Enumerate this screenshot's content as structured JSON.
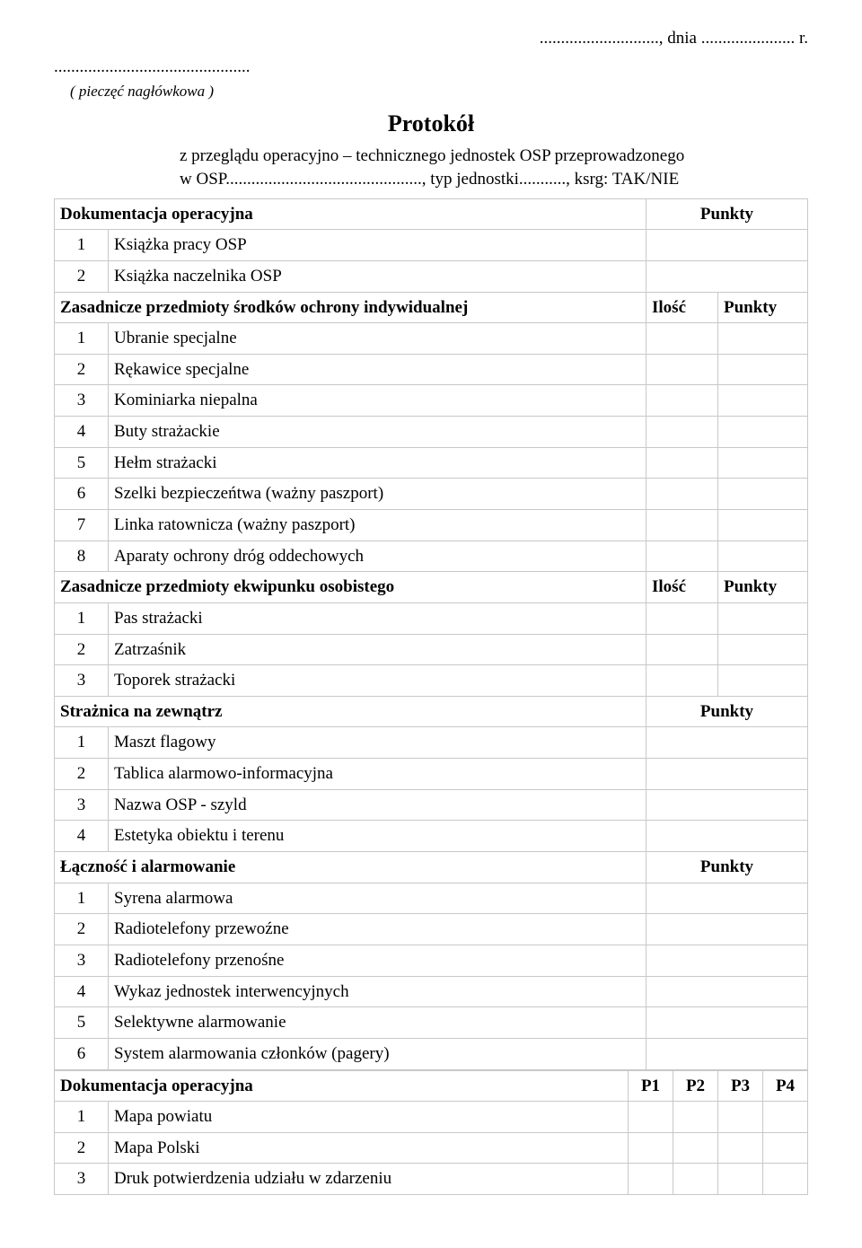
{
  "header": {
    "date_line": "............................, dnia ...................... r.",
    "stamp_dots": "..............................................",
    "stamp_caption": "( pieczęć nagłówkowa )",
    "title": "Protokół",
    "intro_line1": "z przeglądu operacyjno – technicznego jednostek OSP przeprowadzonego",
    "intro_line2": "w OSP.............................................., typ jednostki..........., ksrg: TAK/NIE"
  },
  "sec1": {
    "title": "Dokumentacja operacyjna",
    "pt_label": "Punkty",
    "rows": [
      {
        "n": "1",
        "t": "Książka pracy OSP"
      },
      {
        "n": "2",
        "t": "Książka naczelnika OSP"
      }
    ]
  },
  "sec2": {
    "title": "Zasadnicze przedmioty środków ochrony indywidualnej",
    "il_label": "Ilość",
    "pt_label": "Punkty",
    "rows": [
      {
        "n": "1",
        "t": "Ubranie specjalne"
      },
      {
        "n": "2",
        "t": "Rękawice specjalne"
      },
      {
        "n": "3",
        "t": "Kominiarka niepalna"
      },
      {
        "n": "4",
        "t": "Buty strażackie"
      },
      {
        "n": "5",
        "t": "Hełm strażacki"
      },
      {
        "n": "6",
        "t": "Szelki bezpieczeńtwa (ważny paszport)"
      },
      {
        "n": "7",
        "t": "Linka ratownicza (ważny paszport)"
      },
      {
        "n": "8",
        "t": "Aparaty ochrony dróg oddechowych"
      }
    ]
  },
  "sec3": {
    "title": "Zasadnicze przedmioty ekwipunku osobistego",
    "il_label": "Ilość",
    "pt_label": "Punkty",
    "rows": [
      {
        "n": "1",
        "t": "Pas strażacki"
      },
      {
        "n": "2",
        "t": "Zatrzaśnik"
      },
      {
        "n": "3",
        "t": "Toporek strażacki"
      }
    ]
  },
  "sec4": {
    "title": "Strażnica na zewnątrz",
    "pt_label": "Punkty",
    "rows": [
      {
        "n": "1",
        "t": "Maszt flagowy"
      },
      {
        "n": "2",
        "t": "Tablica alarmowo-informacyjna"
      },
      {
        "n": "3",
        "t": "Nazwa OSP - szyld"
      },
      {
        "n": "4",
        "t": "Estetyka obiektu i terenu"
      }
    ]
  },
  "sec5": {
    "title": "Łączność i alarmowanie",
    "pt_label": "Punkty",
    "rows": [
      {
        "n": "1",
        "t": "Syrena alarmowa"
      },
      {
        "n": "2",
        "t": "Radiotelefony przewoźne"
      },
      {
        "n": "3",
        "t": "Radiotelefony przenośne"
      },
      {
        "n": "4",
        "t": "Wykaz jednostek interwencyjnych"
      },
      {
        "n": "5",
        "t": "Selektywne alarmowanie"
      },
      {
        "n": "6",
        "t": "System alarmowania członków (pagery)"
      }
    ]
  },
  "sec6": {
    "title": "Dokumentacja operacyjna",
    "p1": "P1",
    "p2": "P2",
    "p3": "P3",
    "p4": "P4",
    "rows": [
      {
        "n": "1",
        "t": "Mapa powiatu"
      },
      {
        "n": "2",
        "t": "Mapa Polski"
      },
      {
        "n": "3",
        "t": "Druk potwierdzenia udziału w zdarzeniu"
      }
    ]
  }
}
